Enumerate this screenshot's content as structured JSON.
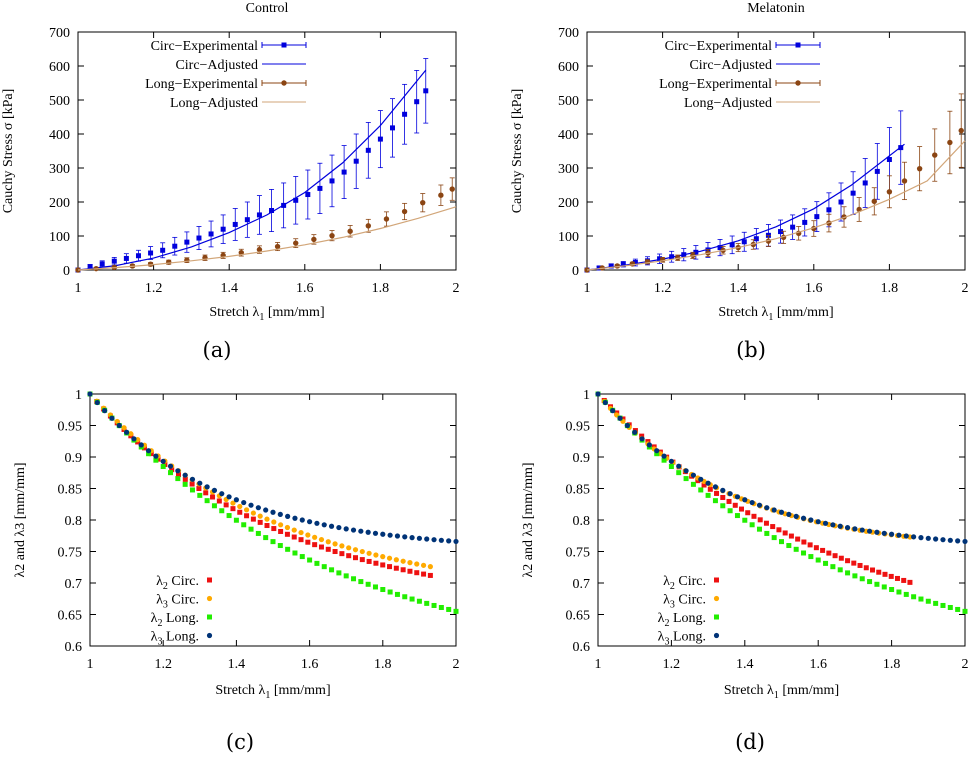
{
  "chart_data": [
    {
      "id": "a",
      "type": "line",
      "title": "Control",
      "xlabel_main": "Stretch λ",
      "xlabel_sub": "1",
      "xlabel_unit": "[mm/mm]",
      "ylabel": "Cauchy Stress σ [kPa]",
      "xlim": [
        1,
        2
      ],
      "ylim": [
        0,
        700
      ],
      "xticks": [
        1,
        1.2,
        1.4,
        1.6,
        1.8,
        2
      ],
      "xtick_labels": [
        "1",
        "1.2",
        "1.4",
        "1.6",
        "1.8",
        "2"
      ],
      "yticks": [
        0,
        100,
        200,
        300,
        400,
        500,
        600,
        700
      ],
      "ytick_labels": [
        "0",
        "100",
        "200",
        "300",
        "400",
        "500",
        "600",
        "700"
      ],
      "legend_position": "top-left",
      "caption": "(a)",
      "series": [
        {
          "name": "Circ−Experimental",
          "kind": "errorbar",
          "marker": "square",
          "color": "#0000dd",
          "x": [
            1.0,
            1.032,
            1.064,
            1.096,
            1.128,
            1.16,
            1.192,
            1.224,
            1.256,
            1.288,
            1.32,
            1.352,
            1.384,
            1.416,
            1.448,
            1.48,
            1.512,
            1.544,
            1.576,
            1.608,
            1.64,
            1.672,
            1.704,
            1.736,
            1.768,
            1.8,
            1.832,
            1.864,
            1.896,
            1.92
          ],
          "y": [
            0,
            10,
            18,
            26,
            34,
            42,
            50,
            58,
            70,
            82,
            94,
            106,
            120,
            134,
            148,
            162,
            175,
            190,
            205,
            222,
            240,
            262,
            288,
            320,
            352,
            385,
            418,
            458,
            495,
            527
          ],
          "err": [
            3,
            6,
            9,
            11,
            14,
            16,
            19,
            22,
            26,
            30,
            34,
            38,
            42,
            47,
            52,
            57,
            62,
            66,
            70,
            72,
            74,
            76,
            78,
            80,
            82,
            84,
            86,
            88,
            92,
            95
          ]
        },
        {
          "name": "Circ−Adjusted",
          "kind": "line",
          "color": "#0000dd",
          "x": [
            1.0,
            1.1,
            1.2,
            1.3,
            1.4,
            1.5,
            1.6,
            1.7,
            1.8,
            1.92
          ],
          "y": [
            0,
            13,
            35,
            68,
            110,
            162,
            228,
            315,
            425,
            588
          ]
        },
        {
          "name": "Long−Experimental",
          "kind": "errorbar",
          "marker": "circle",
          "color": "#8b4513",
          "x": [
            1.0,
            1.048,
            1.096,
            1.144,
            1.192,
            1.24,
            1.288,
            1.336,
            1.384,
            1.432,
            1.48,
            1.528,
            1.576,
            1.624,
            1.672,
            1.72,
            1.768,
            1.816,
            1.864,
            1.912,
            1.96,
            1.99
          ],
          "y": [
            0,
            4,
            8,
            12,
            17,
            23,
            29,
            36,
            43,
            51,
            60,
            69,
            79,
            90,
            101,
            114,
            130,
            150,
            172,
            198,
            220,
            238
          ],
          "err": [
            1,
            2,
            3,
            4,
            5,
            6,
            7,
            8,
            9,
            10,
            11,
            12,
            13,
            14,
            15,
            17,
            19,
            21,
            24,
            27,
            30,
            33
          ]
        },
        {
          "name": "Long−Adjusted",
          "kind": "line",
          "color": "#d2a679",
          "x": [
            1.0,
            1.1,
            1.2,
            1.3,
            1.4,
            1.5,
            1.6,
            1.7,
            1.8,
            1.9,
            2.0
          ],
          "y": [
            0,
            7,
            16,
            27,
            40,
            56,
            74,
            96,
            122,
            152,
            186
          ]
        }
      ]
    },
    {
      "id": "b",
      "type": "line",
      "title": "Melatonin",
      "xlabel_main": "Stretch λ",
      "xlabel_sub": "1",
      "xlabel_unit": "[mm/mm]",
      "ylabel": "Cauchy Stress σ [kPa]",
      "xlim": [
        1,
        2
      ],
      "ylim": [
        0,
        700
      ],
      "xticks": [
        1,
        1.2,
        1.4,
        1.6,
        1.8,
        2
      ],
      "xtick_labels": [
        "1",
        "1.2",
        "1.4",
        "1.6",
        "1.8",
        "2"
      ],
      "yticks": [
        0,
        100,
        200,
        300,
        400,
        500,
        600,
        700
      ],
      "ytick_labels": [
        "0",
        "100",
        "200",
        "300",
        "400",
        "500",
        "600",
        "700"
      ],
      "legend_position": "top-left",
      "caption": "(b)",
      "series": [
        {
          "name": "Circ−Experimental",
          "kind": "errorbar",
          "marker": "square",
          "color": "#0000dd",
          "x": [
            1.0,
            1.032,
            1.064,
            1.096,
            1.128,
            1.16,
            1.192,
            1.224,
            1.256,
            1.288,
            1.32,
            1.352,
            1.384,
            1.416,
            1.448,
            1.48,
            1.512,
            1.544,
            1.576,
            1.608,
            1.64,
            1.672,
            1.704,
            1.736,
            1.768,
            1.8,
            1.83
          ],
          "y": [
            0,
            6,
            12,
            17,
            22,
            27,
            33,
            39,
            45,
            52,
            59,
            66,
            74,
            83,
            92,
            102,
            113,
            126,
            140,
            157,
            177,
            200,
            226,
            256,
            290,
            325,
            360
          ],
          "err": [
            2,
            4,
            6,
            8,
            10,
            12,
            14,
            16,
            18,
            20,
            22,
            24,
            26,
            28,
            30,
            32,
            34,
            36,
            40,
            44,
            50,
            56,
            63,
            72,
            82,
            94,
            108
          ]
        },
        {
          "name": "Circ−Adjusted",
          "kind": "line",
          "color": "#0000dd",
          "x": [
            1.0,
            1.1,
            1.2,
            1.3,
            1.4,
            1.5,
            1.6,
            1.7,
            1.84
          ],
          "y": [
            0,
            14,
            32,
            55,
            86,
            127,
            180,
            250,
            370
          ]
        },
        {
          "name": "Long−Experimental",
          "kind": "errorbar",
          "marker": "circle",
          "color": "#8b4513",
          "x": [
            1.0,
            1.04,
            1.08,
            1.12,
            1.16,
            1.2,
            1.24,
            1.28,
            1.32,
            1.36,
            1.4,
            1.44,
            1.48,
            1.52,
            1.56,
            1.6,
            1.64,
            1.68,
            1.72,
            1.76,
            1.8,
            1.84,
            1.88,
            1.92,
            1.96,
            1.99
          ],
          "y": [
            0,
            6,
            12,
            18,
            24,
            30,
            36,
            43,
            50,
            58,
            66,
            75,
            85,
            96,
            108,
            122,
            138,
            156,
            178,
            202,
            230,
            262,
            298,
            338,
            375,
            410
          ],
          "err": [
            2,
            3,
            4,
            5,
            6,
            7,
            8,
            9,
            10,
            11,
            12,
            14,
            16,
            18,
            20,
            23,
            26,
            30,
            35,
            40,
            47,
            55,
            65,
            77,
            92,
            108
          ]
        },
        {
          "name": "Long−Adjusted",
          "kind": "line",
          "color": "#d2a679",
          "x": [
            1.0,
            1.1,
            1.2,
            1.3,
            1.4,
            1.5,
            1.6,
            1.7,
            1.8,
            1.9,
            2.0
          ],
          "y": [
            0,
            12,
            27,
            45,
            66,
            92,
            124,
            162,
            208,
            262,
            380
          ]
        }
      ]
    },
    {
      "id": "c",
      "type": "scatter",
      "title": "",
      "xlabel_main": "Stretch λ",
      "xlabel_sub": "1",
      "xlabel_unit": "[mm/mm]",
      "ylabel": "λ2 and λ3 [mm/mm]",
      "xlim": [
        1,
        2
      ],
      "ylim": [
        0.6,
        1
      ],
      "xticks": [
        1,
        1.2,
        1.4,
        1.6,
        1.8,
        2
      ],
      "xtick_labels": [
        "1",
        "1.2",
        "1.4",
        "1.6",
        "1.8",
        "2"
      ],
      "yticks": [
        0.6,
        0.65,
        0.7,
        0.75,
        0.8,
        0.85,
        0.9,
        0.95,
        1
      ],
      "ytick_labels": [
        "0.6",
        "0.65",
        "0.7",
        "0.75",
        "0.8",
        "0.85",
        "0.9",
        "0.95",
        "1"
      ],
      "legend_position": "bottom-left",
      "caption": "(c)",
      "series": [
        {
          "name": "λ2 Circ.",
          "sym": "λ",
          "sub": "2",
          "label": "Circ.",
          "marker": "square",
          "color": "#ee1111",
          "x_end": 1.93,
          "y_end": 0.712,
          "k": 1.9
        },
        {
          "name": "λ3 Circ.",
          "sym": "λ",
          "sub": "3",
          "label": "Circ.",
          "marker": "circle",
          "color": "#ffaa00",
          "x_end": 1.93,
          "y_end": 0.726,
          "k": 1.9
        },
        {
          "name": "λ2 Long.",
          "sym": "λ",
          "sub": "2",
          "label": "Long.",
          "marker": "square",
          "color": "#22ee00",
          "x_end": 2.0,
          "y_end": 0.655,
          "k": 1.5
        },
        {
          "name": "λ3 Long.",
          "sym": "λ",
          "sub": "3",
          "label": "Long.",
          "marker": "circle",
          "color": "#003377",
          "x_end": 2.0,
          "y_end": 0.766,
          "k": 2.8
        }
      ]
    },
    {
      "id": "d",
      "type": "scatter",
      "title": "",
      "xlabel_main": "Stretch λ",
      "xlabel_sub": "1",
      "xlabel_unit": "[mm/mm]",
      "ylabel": "λ2 and λ3 [mm/mm]",
      "xlim": [
        1,
        2
      ],
      "ylim": [
        0.6,
        1
      ],
      "xticks": [
        1,
        1.2,
        1.4,
        1.6,
        1.8,
        2
      ],
      "xtick_labels": [
        "1",
        "1.2",
        "1.4",
        "1.6",
        "1.8",
        "2"
      ],
      "yticks": [
        0.6,
        0.65,
        0.7,
        0.75,
        0.8,
        0.85,
        0.9,
        0.95,
        1
      ],
      "ytick_labels": [
        "0.6",
        "0.65",
        "0.7",
        "0.75",
        "0.8",
        "0.85",
        "0.9",
        "0.95",
        "1"
      ],
      "legend_position": "bottom-left",
      "caption": "(d)",
      "series": [
        {
          "name": "λ2 Circ.",
          "sym": "λ",
          "sub": "2",
          "label": "Circ.",
          "marker": "square",
          "color": "#ee1111",
          "x_end": 1.85,
          "y_end": 0.701,
          "k": 1.45
        },
        {
          "name": "λ3 Circ.",
          "sym": "λ",
          "sub": "3",
          "label": "Circ.",
          "marker": "circle",
          "color": "#ffaa00",
          "x_end": 1.85,
          "y_end": 0.773,
          "k": 2.8
        },
        {
          "name": "λ2 Long.",
          "sym": "λ",
          "sub": "2",
          "label": "Long.",
          "marker": "square",
          "color": "#22ee00",
          "x_end": 2.0,
          "y_end": 0.655,
          "k": 1.5
        },
        {
          "name": "λ3 Long.",
          "sym": "λ",
          "sub": "3",
          "label": "Long.",
          "marker": "circle",
          "color": "#003377",
          "x_end": 2.0,
          "y_end": 0.766,
          "k": 2.8
        }
      ]
    }
  ]
}
